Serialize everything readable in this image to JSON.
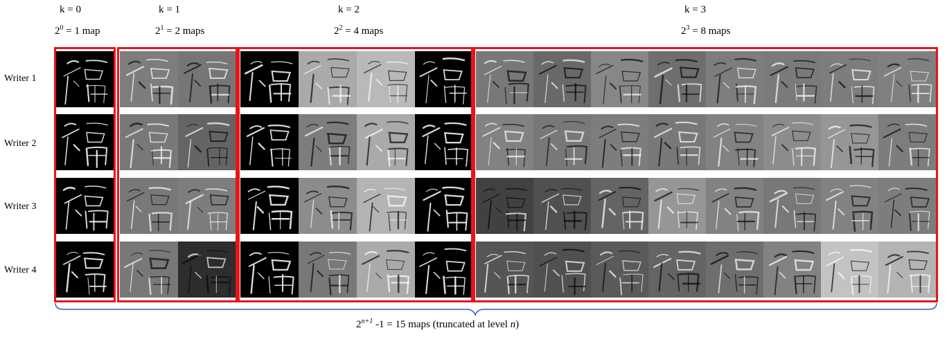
{
  "levels": [
    {
      "k_label": "k = 0",
      "count_base": "2",
      "count_exp": "0",
      "count_rest": " = 1 map",
      "maps": 1
    },
    {
      "k_label": "k = 1",
      "count_base": "2",
      "count_exp": "1",
      "count_rest": " = 2 maps",
      "maps": 2
    },
    {
      "k_label": "k = 2",
      "count_base": "2",
      "count_exp": "2",
      "count_rest": " = 4 maps",
      "maps": 4
    },
    {
      "k_label": "k = 3",
      "count_base": "2",
      "count_exp": "3",
      "count_rest": " = 8 maps",
      "maps": 8
    }
  ],
  "writers": [
    "Writer 1",
    "Writer 2",
    "Writer 3",
    "Writer 4"
  ],
  "total": {
    "base": "2",
    "exp": "n+1",
    "rest_before_n": " -1 = 15 maps (truncated at level ",
    "n": "n",
    "close": ")"
  },
  "colors": {
    "box": "#e8141b",
    "brace": "#3355cc"
  },
  "map_gray_levels": [
    [
      0,
      125,
      118,
      0,
      170,
      185,
      0,
      120,
      105,
      135,
      110,
      125,
      122,
      125,
      128,
      118,
      90
    ],
    [
      0,
      120,
      100,
      0,
      125,
      170,
      0,
      130,
      120,
      125,
      120,
      130,
      140,
      150,
      125,
      115,
      70
    ],
    [
      0,
      120,
      125,
      0,
      140,
      180,
      0,
      65,
      80,
      100,
      150,
      130,
      120,
      130,
      125,
      110,
      120
    ],
    [
      0,
      120,
      45,
      0,
      120,
      170,
      0,
      85,
      80,
      90,
      100,
      110,
      130,
      195,
      180,
      195,
      10
    ]
  ]
}
